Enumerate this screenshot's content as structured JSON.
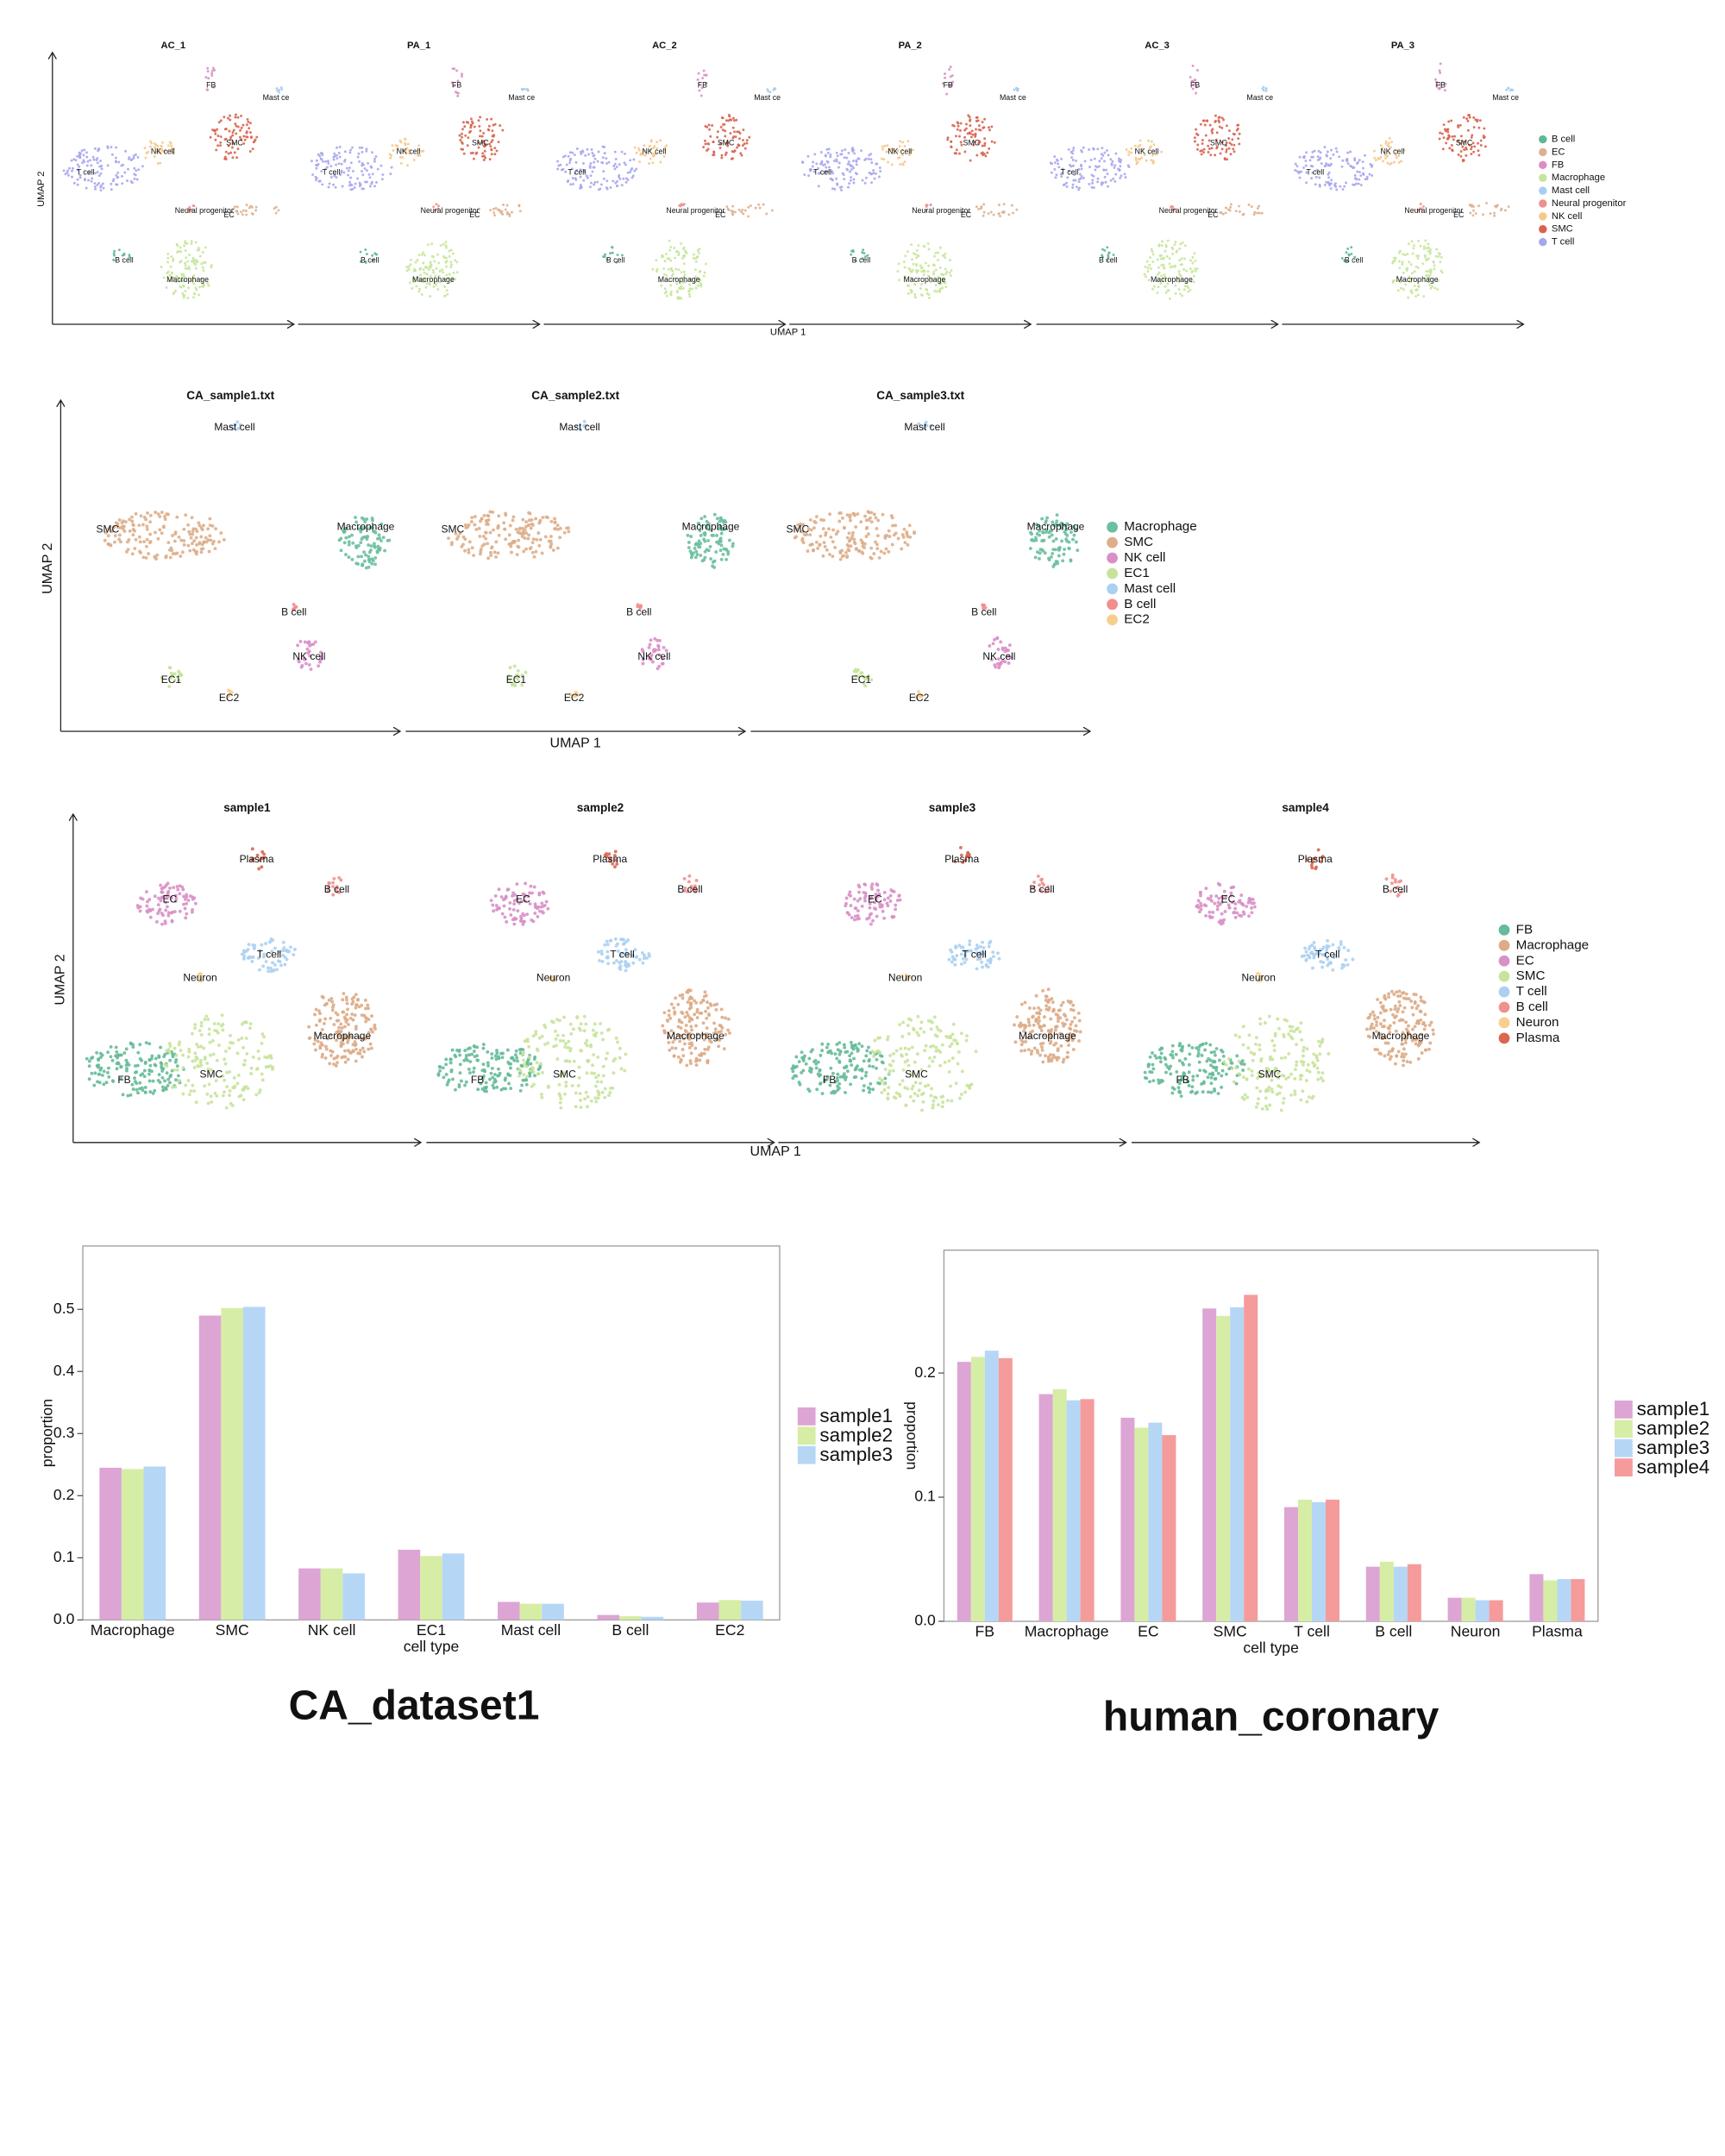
{
  "chart_data": [
    {
      "type": "umap",
      "x_label": "UMAP 1",
      "y_label": "UMAP 2",
      "legend": [
        {
          "name": "B cell",
          "color": "#5fb894"
        },
        {
          "name": "EC",
          "color": "#deb08f"
        },
        {
          "name": "FB",
          "color": "#d98fc4"
        },
        {
          "name": "Macrophage",
          "color": "#c7e59a"
        },
        {
          "name": "Mast cell",
          "color": "#a8cdf0"
        },
        {
          "name": "Neural progenitor",
          "color": "#f08f8f"
        },
        {
          "name": "NK cell",
          "color": "#f5c98c"
        },
        {
          "name": "SMC",
          "color": "#d8634e"
        },
        {
          "name": "T cell",
          "color": "#a6a6ee"
        }
      ],
      "panels": [
        {
          "title": "AC_1",
          "cluster_labels": [
            "B cell",
            "EC",
            "FB",
            "Macrophage",
            "Mast ce",
            "Neural progenitor",
            "NK cell",
            "SMC",
            "T cell"
          ]
        },
        {
          "title": "PA_1",
          "cluster_labels": [
            "B cell",
            "EC",
            "FB",
            "Macrophage",
            "Mast ce",
            "Neural progenitor",
            "NK cell",
            "SMC",
            "T cell"
          ]
        },
        {
          "title": "AC_2",
          "cluster_labels": [
            "B cell",
            "EC",
            "FB",
            "Macrophage",
            "Mast ce",
            "Neural progenitor",
            "NK cell",
            "SMC",
            "T cell"
          ]
        },
        {
          "title": "PA_2",
          "cluster_labels": [
            "B cell",
            "EC",
            "FB",
            "Macrophage",
            "Mast ce",
            "Neural progenitor",
            "NK cell",
            "SMC",
            "T cell"
          ]
        },
        {
          "title": "AC_3",
          "cluster_labels": [
            "B cell",
            "EC",
            "FB",
            "Macrophage",
            "Mast ce",
            "Neural progenitor",
            "NK cell",
            "SMC",
            "T cell"
          ]
        },
        {
          "title": "PA_3",
          "cluster_labels": [
            "B cell",
            "EC",
            "FB",
            "Macrophage",
            "Mast ce",
            "Neural progenitor",
            "NK cell",
            "SMC",
            "T cell"
          ]
        }
      ]
    },
    {
      "type": "umap",
      "x_label": "UMAP 1",
      "y_label": "UMAP 2",
      "legend": [
        {
          "name": "Macrophage",
          "color": "#6bbf9f"
        },
        {
          "name": "SMC",
          "color": "#deae8a"
        },
        {
          "name": "NK cell",
          "color": "#da8fc9"
        },
        {
          "name": "EC1",
          "color": "#c5e39b"
        },
        {
          "name": "Mast cell",
          "color": "#abd0f1"
        },
        {
          "name": "B cell",
          "color": "#f28e8e"
        },
        {
          "name": "EC2",
          "color": "#f6cf8f"
        }
      ],
      "panels": [
        {
          "title": "CA_sample1.txt",
          "cluster_labels": [
            "Macrophage",
            "SMC",
            "NK cell",
            "EC1",
            "Mast cell",
            "B cell",
            "EC2"
          ]
        },
        {
          "title": "CA_sample2.txt",
          "cluster_labels": [
            "Macrophage",
            "SMC",
            "NK cell",
            "EC1",
            "Mast cell",
            "B cell",
            "EC2"
          ]
        },
        {
          "title": "CA_sample3.txt",
          "cluster_labels": [
            "Macrophage",
            "SMC",
            "NK cell",
            "EC1",
            "Mast cell",
            "B cell",
            "EC2"
          ]
        }
      ]
    },
    {
      "type": "umap",
      "x_label": "UMAP 1",
      "y_label": "UMAP 2",
      "legend": [
        {
          "name": "FB",
          "color": "#66bb98"
        },
        {
          "name": "Macrophage",
          "color": "#ddab86"
        },
        {
          "name": "EC",
          "color": "#d890c6"
        },
        {
          "name": "SMC",
          "color": "#c8e39c"
        },
        {
          "name": "T cell",
          "color": "#acd0f2"
        },
        {
          "name": "B cell",
          "color": "#f09090"
        },
        {
          "name": "Neuron",
          "color": "#f7cf8e"
        },
        {
          "name": "Plasma",
          "color": "#d9674f"
        }
      ],
      "panels": [
        {
          "title": "sample1",
          "cluster_labels": [
            "FB",
            "Macrophage",
            "EC",
            "SMC",
            "T cell",
            "B cell",
            "Neuron",
            "Plasma"
          ]
        },
        {
          "title": "sample2",
          "cluster_labels": [
            "FB",
            "Macrophage",
            "EC",
            "SMC",
            "T cell",
            "B cell",
            "Neuron",
            "Plasma"
          ]
        },
        {
          "title": "sample3",
          "cluster_labels": [
            "FB",
            "Macrophage",
            "EC",
            "SMC",
            "T cell",
            "B cell",
            "Neuron",
            "Plasma"
          ]
        },
        {
          "title": "sample4",
          "cluster_labels": [
            "FB",
            "Macrophage",
            "EC",
            "SMC",
            "T cell",
            "B cell",
            "Neuron",
            "Plasma"
          ]
        }
      ]
    },
    {
      "type": "bar",
      "caption": "CA_dataset1",
      "x_label": "cell type",
      "y_label": "proportion",
      "categories": [
        "Macrophage",
        "SMC",
        "NK cell",
        "EC1",
        "Mast cell",
        "B cell",
        "EC2"
      ],
      "series": [
        {
          "name": "sample1",
          "color": "#dda5d3",
          "values": [
            0.245,
            0.49,
            0.083,
            0.113,
            0.029,
            0.008,
            0.028
          ]
        },
        {
          "name": "sample2",
          "color": "#d6eda6",
          "values": [
            0.243,
            0.502,
            0.083,
            0.103,
            0.026,
            0.006,
            0.032
          ]
        },
        {
          "name": "sample3",
          "color": "#b6d6f6",
          "values": [
            0.247,
            0.504,
            0.075,
            0.107,
            0.026,
            0.005,
            0.031
          ]
        }
      ],
      "ylim": [
        0,
        0.602
      ],
      "yticks": [
        {
          "value": 0,
          "label": "0.0"
        },
        0.1,
        0.2,
        0.3,
        0.4,
        0.5
      ]
    },
    {
      "type": "bar",
      "caption": "human_coronary",
      "x_label": "cell type",
      "y_label": "proportion",
      "categories": [
        "FB",
        "Macrophage",
        "EC",
        "SMC",
        "T cell",
        "B cell",
        "Neuron",
        "Plasma"
      ],
      "series": [
        {
          "name": "sample1",
          "color": "#dda5d3",
          "values": [
            0.209,
            0.183,
            0.164,
            0.252,
            0.092,
            0.044,
            0.019,
            0.038
          ]
        },
        {
          "name": "sample2",
          "color": "#d6eda6",
          "values": [
            0.213,
            0.187,
            0.156,
            0.246,
            0.098,
            0.048,
            0.019,
            0.033
          ]
        },
        {
          "name": "sample3",
          "color": "#b6d6f6",
          "values": [
            0.218,
            0.178,
            0.16,
            0.253,
            0.096,
            0.044,
            0.017,
            0.034
          ]
        },
        {
          "name": "sample4",
          "color": "#f59b9b",
          "values": [
            0.212,
            0.179,
            0.15,
            0.263,
            0.098,
            0.046,
            0.017,
            0.034
          ]
        }
      ],
      "ylim": [
        0,
        0.299
      ],
      "yticks": [
        {
          "value": 0,
          "label": "0.0"
        },
        0.1,
        0.2
      ]
    }
  ]
}
